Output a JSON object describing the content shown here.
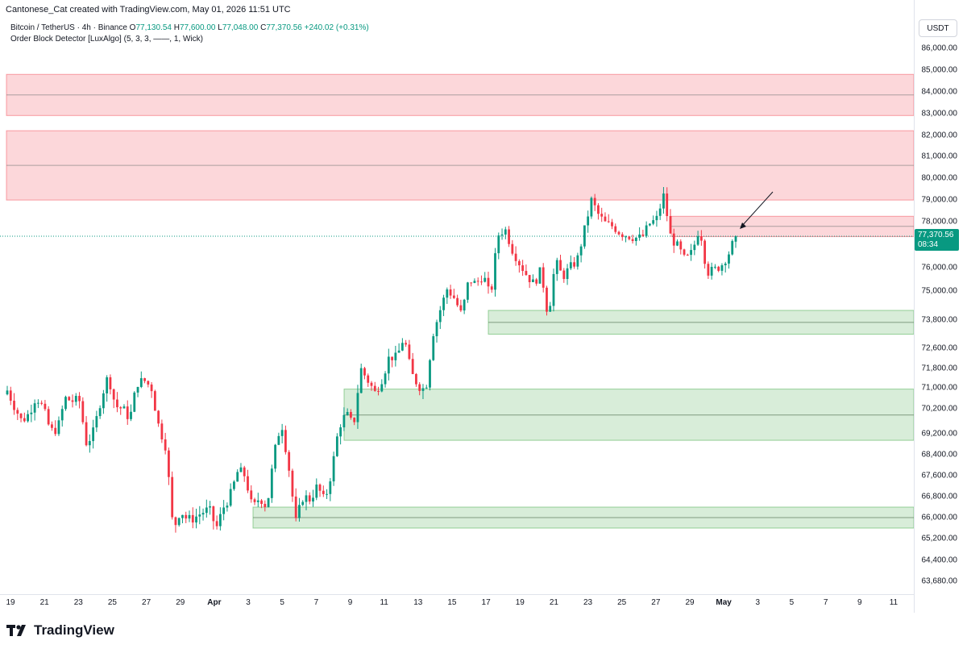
{
  "caption": "Cantonese_Cat created with TradingView.com, May 01, 2026 11:51 UTC",
  "legend": {
    "symbol": "Bitcoin / TetherUS · 4h · Binance",
    "o_label": "O",
    "o_value": "77,130.54",
    "h_label": "H",
    "h_value": "77,600.00",
    "l_label": "L",
    "l_value": "77,048.00",
    "c_label": "C",
    "c_value": "77,370.56",
    "change": "+240.02 (+0.31%)",
    "indicator": "Order Block Detector [LuxAlgo] (5, 3, 3, ——, 1, Wick)"
  },
  "currency": "USDT",
  "last_price": {
    "value": "77,370.56",
    "countdown": "08:34"
  },
  "price_axis": [
    "86,000.00",
    "85,000.00",
    "84,000.00",
    "83,000.00",
    "82,000.00",
    "81,000.00",
    "80,000.00",
    "79,000.00",
    "78,000.00",
    "76,000.00",
    "75,000.00",
    "73,800.00",
    "72,600.00",
    "71,800.00",
    "71,000.00",
    "70,200.00",
    "69,200.00",
    "68,400.00",
    "67,600.00",
    "66,800.00",
    "66,000.00",
    "65,200.00",
    "64,400.00",
    "63,680.00"
  ],
  "time_axis": [
    "19",
    "21",
    "23",
    "25",
    "27",
    "29",
    "Apr",
    "3",
    "5",
    "7",
    "9",
    "11",
    "13",
    "15",
    "17",
    "19",
    "21",
    "23",
    "25",
    "27",
    "29",
    "May",
    "3",
    "5",
    "7",
    "9",
    "11"
  ],
  "colors": {
    "up": "#089981",
    "down": "#f23645",
    "bear_zone": "#f23645",
    "bull_zone": "#4caf50"
  },
  "footer": {
    "brand": "TradingView",
    "logo_icon": "tradingview-logo-icon"
  },
  "chart_data": {
    "type": "candlestick",
    "symbol": "Bitcoin / TetherUS",
    "timeframe": "4h",
    "exchange": "Binance",
    "last_close": 77370.56,
    "order_blocks": {
      "bearish": [
        {
          "top": 84800,
          "mid": 83850,
          "bottom": 82900
        },
        {
          "top": 82200,
          "mid": 80600,
          "bottom": 79000
        },
        {
          "top": 78250,
          "mid": 77800,
          "bottom": 77350
        }
      ],
      "bullish": [
        {
          "top": 74200,
          "mid": 73700,
          "bottom": 73200
        },
        {
          "top": 70950,
          "mid": 69950,
          "bottom": 68950
        },
        {
          "top": 66400,
          "mid": 66000,
          "bottom": 65600
        }
      ]
    },
    "path": [
      70900,
      70300,
      69700,
      70000,
      70700,
      70200,
      69300,
      69400,
      70600,
      70500,
      70500,
      68800,
      69300,
      70600,
      71500,
      70300,
      70200,
      69800,
      71200,
      71300,
      71000,
      69500,
      68700,
      65500,
      66300,
      65900,
      66000,
      66200,
      66300,
      65600,
      66400,
      66900,
      67800,
      67600,
      66300,
      66800,
      66400,
      68400,
      69700,
      68000,
      65800,
      66800,
      66700,
      67200,
      66600,
      67800,
      69500,
      70000,
      69500,
      71800,
      71300,
      70800,
      71400,
      72300,
      72200,
      73100,
      71600,
      71100,
      70900,
      73200,
      74200,
      75100,
      74700,
      74000,
      75500,
      75300,
      75700,
      74700,
      77400,
      77700,
      76800,
      76200,
      75700,
      75300,
      75900,
      73900,
      76300,
      75600,
      76000,
      76300,
      77600,
      79000,
      78300,
      77900,
      77800,
      77500,
      77400,
      77300,
      77300,
      77900,
      78100,
      79200,
      77300,
      76900,
      76300,
      76700,
      77800,
      75800,
      75900,
      76100,
      76600,
      77370
    ],
    "ylim": [
      63500,
      86200
    ]
  }
}
